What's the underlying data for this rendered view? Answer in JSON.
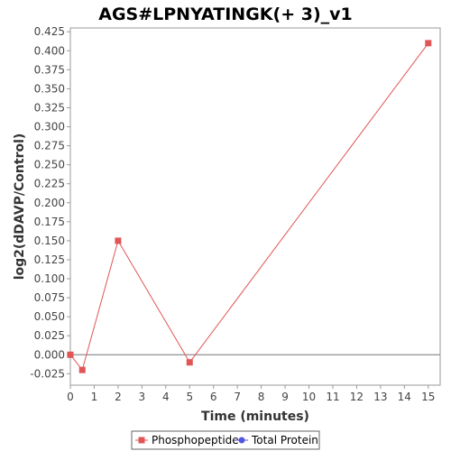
{
  "chart_data": {
    "type": "line",
    "title": "AGS#LPNYATINGK(+ 3)_v1",
    "xlabel": "Time (minutes)",
    "ylabel": "log2(dDAVP/Control)",
    "xlim": [
      0,
      15.5
    ],
    "ylim": [
      -0.04,
      0.43
    ],
    "x_ticks": [
      0,
      1,
      2,
      3,
      4,
      5,
      6,
      7,
      8,
      9,
      10,
      11,
      12,
      13,
      14,
      15
    ],
    "y_ticks": [
      -0.025,
      0,
      0.025,
      0.05,
      0.075,
      0.1,
      0.125,
      0.15,
      0.175,
      0.2,
      0.225,
      0.25,
      0.275,
      0.3,
      0.325,
      0.35,
      0.375,
      0.4,
      0.425
    ],
    "y_tick_labels": [
      "-0.025",
      "0.000",
      "0.025",
      "0.050",
      "0.075",
      "0.100",
      "0.125",
      "0.150",
      "0.175",
      "0.200",
      "0.225",
      "0.250",
      "0.275",
      "0.300",
      "0.325",
      "0.350",
      "0.375",
      "0.400",
      "0.425"
    ],
    "zero_line": true,
    "grid": false,
    "legend_position": "bottom-center",
    "series": [
      {
        "name": "Phosphopeptide",
        "color": "#e05555",
        "marker": "square",
        "points": [
          [
            0,
            0.0
          ],
          [
            0.5,
            -0.02
          ],
          [
            2,
            0.15
          ],
          [
            5,
            -0.01
          ],
          [
            15,
            0.41
          ]
        ]
      },
      {
        "name": "Total Protein",
        "color": "#5555e0",
        "marker": "circle",
        "points": []
      }
    ]
  }
}
